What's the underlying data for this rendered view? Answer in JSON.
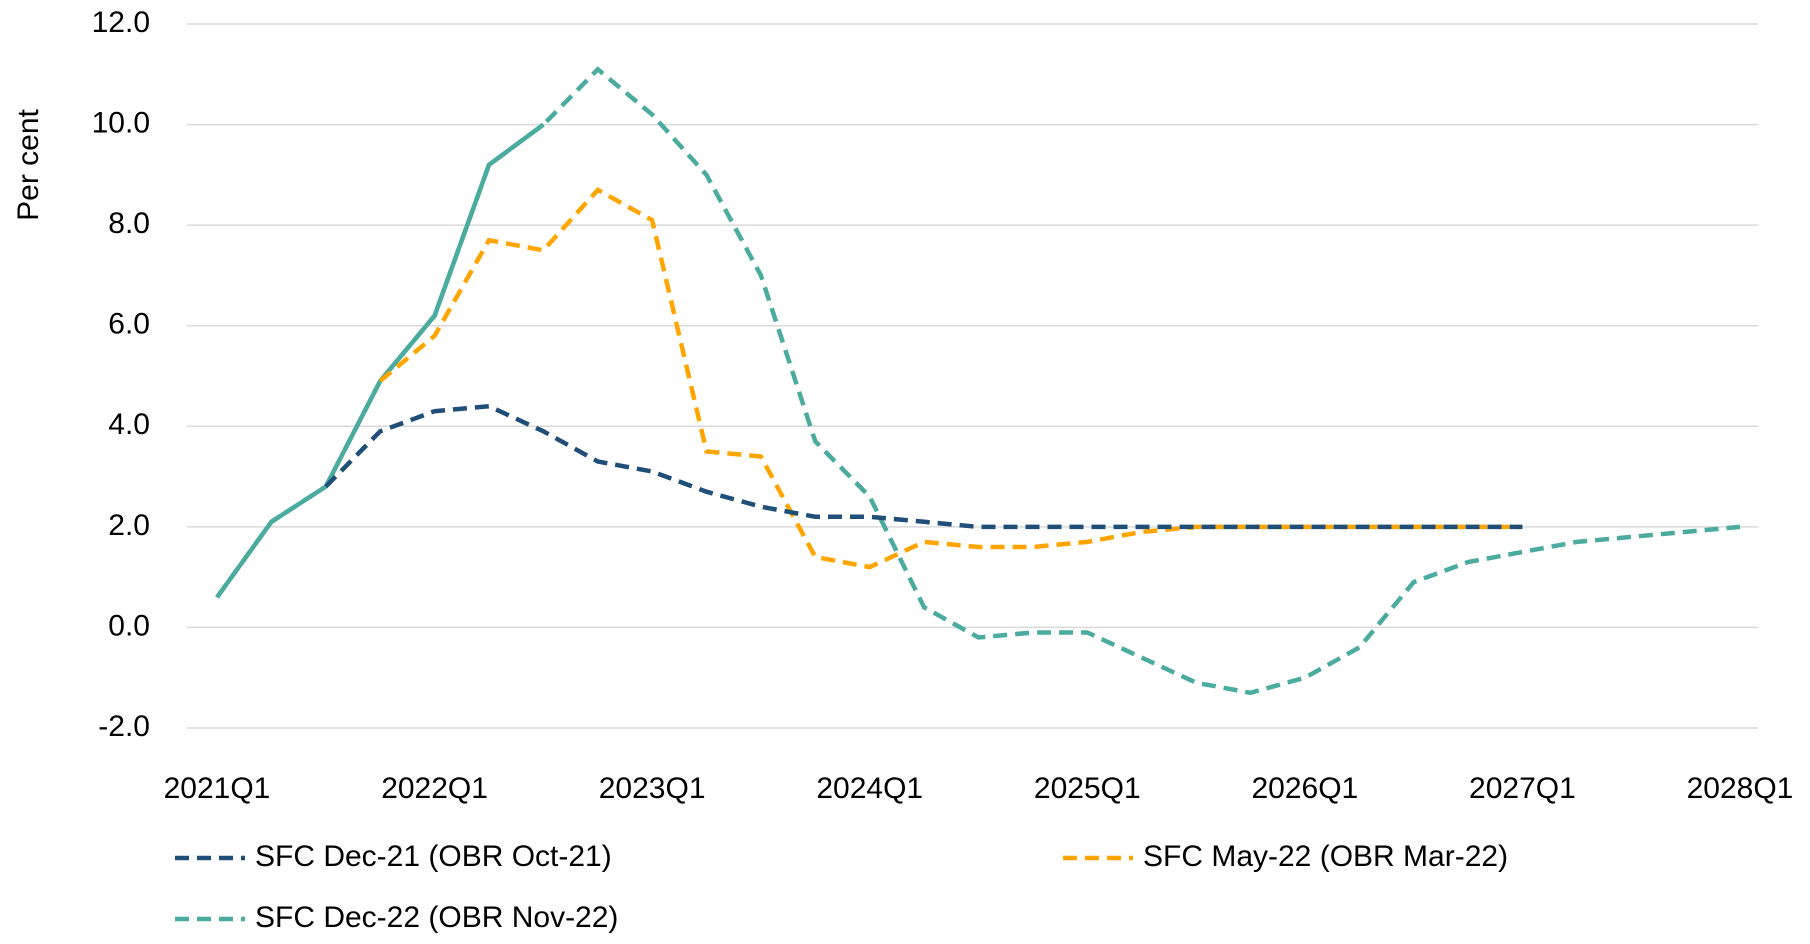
{
  "chart_data": {
    "type": "line",
    "ylabel": "Per cent",
    "categories": [
      "2021Q1",
      null,
      null,
      null,
      "2022Q1",
      null,
      null,
      null,
      "2023Q1",
      null,
      null,
      null,
      "2024Q1",
      null,
      null,
      null,
      "2025Q1",
      null,
      null,
      null,
      "2026Q1",
      null,
      null,
      null,
      "2027Q1",
      null,
      null,
      null,
      "2028Q1"
    ],
    "ylim": [
      -2,
      12
    ],
    "yticks": [
      {
        "value": -2,
        "label": "-2.0"
      },
      {
        "value": 0,
        "label": "0.0"
      },
      {
        "value": 2,
        "label": "2.0"
      },
      {
        "value": 4,
        "label": "4.0"
      },
      {
        "value": 6,
        "label": "6.0"
      },
      {
        "value": 8,
        "label": "8.0"
      },
      {
        "value": 10,
        "label": "10.0"
      },
      {
        "value": 12,
        "label": "12.0"
      }
    ],
    "grid": true,
    "legend": "bottom",
    "series": [
      {
        "name": "SFC Dec-21 (OBR Oct-21)",
        "color": "#1f4e79",
        "values": [
          null,
          null,
          2.8,
          3.9,
          4.3,
          4.4,
          3.9,
          3.3,
          3.1,
          2.7,
          2.4,
          2.2,
          2.2,
          2.1,
          2.0,
          2.0,
          2.0,
          2.0,
          2.0,
          2.0,
          2.0,
          2.0,
          2.0,
          2.0,
          2.0,
          null,
          null,
          null,
          null
        ]
      },
      {
        "name": "SFC May-22 (OBR Mar-22)",
        "color": "#ffa500",
        "values": [
          null,
          null,
          null,
          4.9,
          5.8,
          7.7,
          7.5,
          8.7,
          8.1,
          3.5,
          3.4,
          1.4,
          1.2,
          1.7,
          1.6,
          1.6,
          1.7,
          1.9,
          2.0,
          2.0,
          2.0,
          2.0,
          2.0,
          2.0,
          2.0,
          null,
          null,
          null,
          null
        ]
      },
      {
        "name": "SFC Dec-22 (OBR Nov-22)",
        "color": "#4aab9e",
        "values": [
          0.6,
          2.1,
          2.8,
          4.9,
          6.2,
          9.2,
          10.0,
          11.1,
          10.2,
          9.0,
          7.0,
          3.7,
          2.6,
          0.4,
          -0.2,
          -0.1,
          -0.1,
          -0.6,
          -1.1,
          -1.3,
          -1.0,
          -0.4,
          0.9,
          1.3,
          1.5,
          1.7,
          1.8,
          1.9,
          2.0
        ]
      }
    ]
  }
}
